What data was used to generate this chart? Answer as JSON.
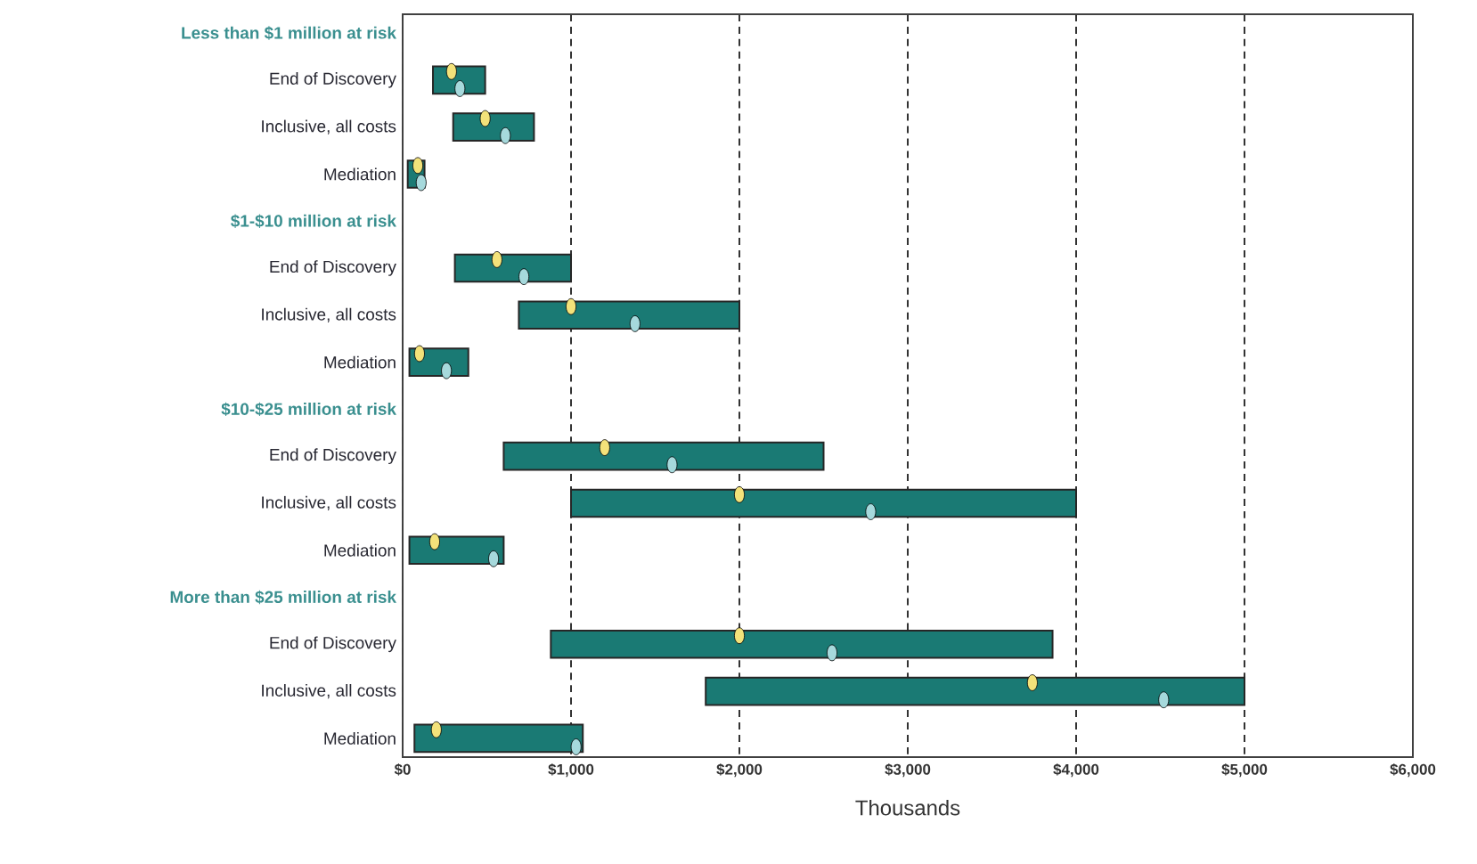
{
  "chart_data": {
    "type": "bar",
    "orientation": "horizontal",
    "xlabel": "Thousands",
    "categories": [
      "Less than $1 million at risk",
      "End of Discovery",
      "Inclusive, all costs",
      "Mediation",
      "$1-$10 million at risk",
      "End of Discovery",
      "Inclusive, all costs",
      "Mediation",
      "$10-$25 million at risk",
      "End of Discovery",
      "Inclusive, all costs",
      "Mediation",
      "More than $25 million at risk",
      "End of Discovery",
      "Inclusive, all costs",
      "Mediation"
    ],
    "series": [
      {
        "color": "#1a7a74",
        "base": [
          null,
          180,
          300,
          30,
          null,
          310,
          690,
          40,
          null,
          600,
          1000,
          40,
          null,
          880,
          1800,
          70
        ],
        "values": [
          null,
          310,
          480,
          100,
          null,
          690,
          1310,
          350,
          null,
          1900,
          3000,
          560,
          null,
          2980,
          3200,
          1000
        ]
      },
      {
        "type": "scatter",
        "color": "#f3e27a",
        "values": [
          null,
          290,
          490,
          90,
          null,
          560,
          1000,
          100,
          null,
          1200,
          2000,
          190,
          null,
          2000,
          3740,
          200
        ]
      },
      {
        "type": "scatter",
        "color": "#a6d9dc",
        "values": [
          null,
          340,
          610,
          110,
          null,
          720,
          1380,
          260,
          null,
          1600,
          2780,
          540,
          null,
          2550,
          4520,
          1030
        ]
      }
    ],
    "xlim": [
      0,
      6000
    ],
    "xticks": [
      {
        "value": 0,
        "label": "$0"
      },
      {
        "value": 1000,
        "label": "$1,000"
      },
      {
        "value": 2000,
        "label": "$2,000"
      },
      {
        "value": 3000,
        "label": "$3,000"
      },
      {
        "value": 4000,
        "label": "$4,000"
      },
      {
        "value": 5000,
        "label": "$5,000"
      },
      {
        "value": 6000,
        "label": "$6,000"
      }
    ],
    "grid": "x",
    "marker": "circle"
  }
}
